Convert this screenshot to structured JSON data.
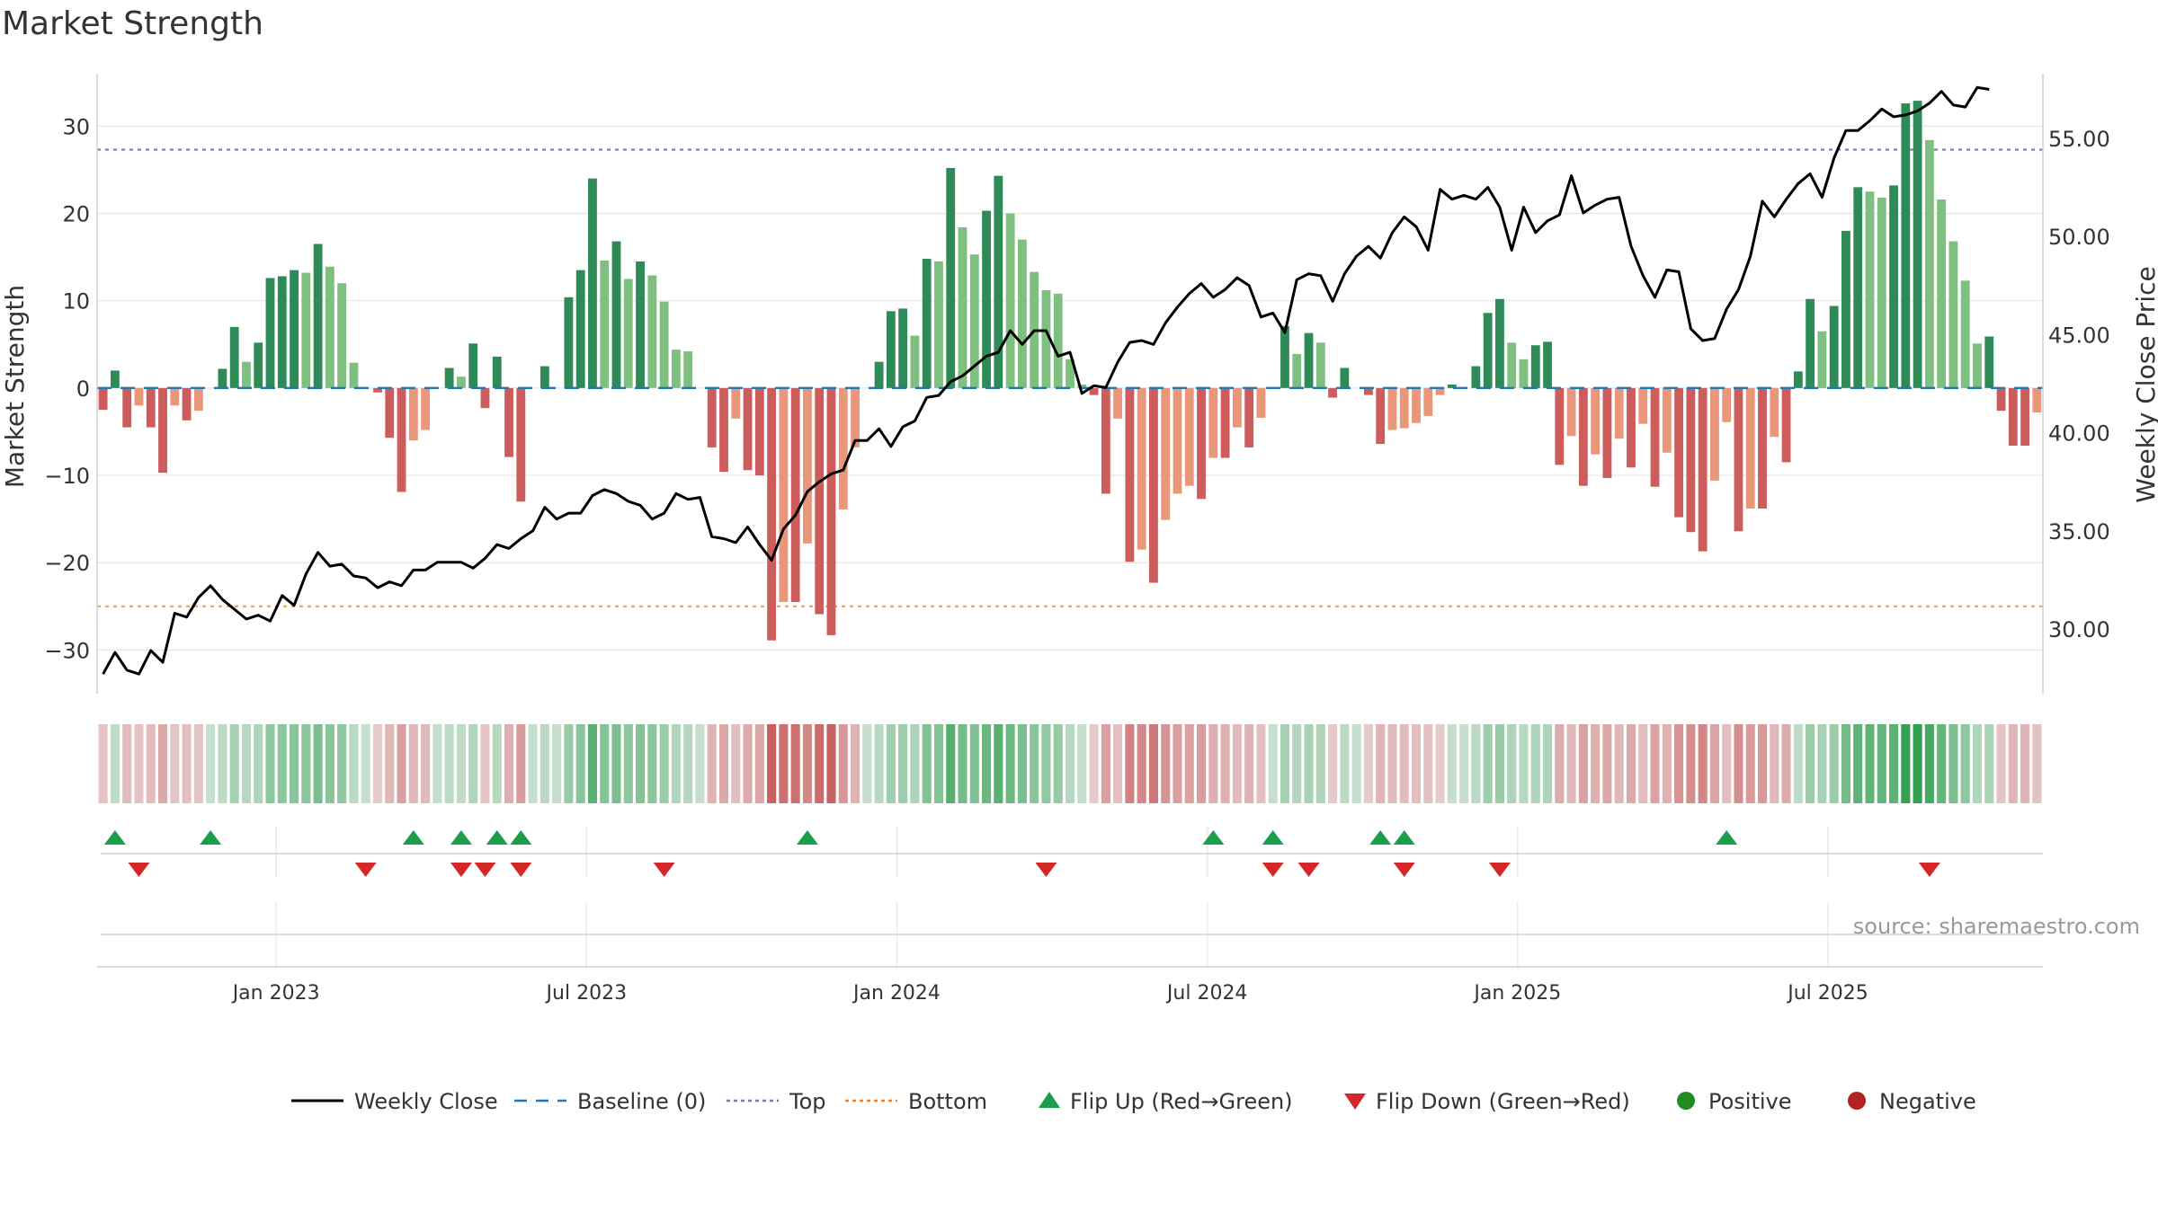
{
  "chart_data": {
    "type": "bar",
    "title": "Market Strength",
    "ylabel": "Market Strength",
    "y2label": "Weekly Close Price",
    "ylim": [
      -35,
      36
    ],
    "y2lim": [
      26.7,
      58.3
    ],
    "yticks": [
      30,
      20,
      10,
      0,
      -10,
      -20,
      -30
    ],
    "ytick_labels": [
      "30",
      "20",
      "10",
      "0",
      "−10",
      "−20",
      "−30"
    ],
    "y2ticks": [
      55,
      50,
      45,
      40,
      35,
      30
    ],
    "y2tick_labels": [
      "55.00",
      "50.00",
      "45.00",
      "40.00",
      "35.00",
      "30.00"
    ],
    "xtick_labels": [
      "Jan 2023",
      "Jul 2023",
      "Jan 2024",
      "Jul 2024",
      "Jan 2025",
      "Jul 2025"
    ],
    "xtick_weeks": [
      14.5,
      40.5,
      66.5,
      92.5,
      118.5,
      144.5
    ],
    "top_line": 27.3,
    "bottom_line": -25,
    "source": "source: sharemaestro.com",
    "legend": [
      {
        "label": "Weekly Close",
        "kind": "line",
        "color": "#000000"
      },
      {
        "label": "Baseline (0)",
        "kind": "dash",
        "color": "#1f77b4"
      },
      {
        "label": "Top",
        "kind": "dot",
        "color": "#9467bd"
      },
      {
        "label": "Bottom",
        "kind": "dot",
        "color": "#ff7f0e"
      },
      {
        "label": "Flip Up (Red→Green)",
        "kind": "tri-up",
        "color": "#1b9e4b"
      },
      {
        "label": "Flip Down (Green→Red)",
        "kind": "tri-down",
        "color": "#d62728"
      },
      {
        "label": "Positive",
        "kind": "circle",
        "color": "#228b22"
      },
      {
        "label": "Negative",
        "kind": "circle",
        "color": "#b22222"
      }
    ],
    "strength": [
      -2.5,
      2,
      -4.5,
      -2,
      -4.5,
      -9.7,
      -2,
      -3.7,
      -2.6,
      0,
      2.2,
      7,
      3,
      5.2,
      12.6,
      12.8,
      13.5,
      13.2,
      16.5,
      13.9,
      12,
      2.9,
      0,
      -0.5,
      -5.7,
      -11.9,
      -6,
      -4.8,
      0,
      2.3,
      1.3,
      5.1,
      -2.3,
      3.6,
      -7.9,
      -13,
      0,
      2.5,
      0,
      10.4,
      13.5,
      24,
      14.6,
      16.8,
      12.5,
      14.5,
      12.9,
      9.9,
      4.4,
      4.2,
      0,
      -6.8,
      -9.6,
      -3.5,
      -9.4,
      -10,
      -28.9,
      -24.5,
      -24.5,
      -17.8,
      -25.9,
      -28.3,
      -13.9,
      -6.8,
      0,
      3,
      8.8,
      9.1,
      6,
      14.8,
      14.5,
      25.2,
      18.4,
      15.3,
      20.3,
      24.3,
      20,
      17,
      13.3,
      11.2,
      10.8,
      3.3,
      0.4,
      -0.8,
      -12.1,
      -3.5,
      -19.9,
      -18.5,
      -22.3,
      -15.1,
      -12.1,
      -11.2,
      -12.7,
      -8,
      -8,
      -4.5,
      -6.8,
      -3.4,
      0,
      7.1,
      3.9,
      6.3,
      5.2,
      -1.1,
      2.3,
      0,
      -0.8,
      -6.4,
      -4.8,
      -4.6,
      -4,
      -3.2,
      -0.8,
      0.4,
      0,
      2.5,
      8.6,
      10.2,
      5.2,
      3.3,
      4.9,
      5.3,
      -8.8,
      -5.5,
      -11.2,
      -7.6,
      -10.3,
      -5.8,
      -9.1,
      -4.1,
      -11.3,
      -7.4,
      -14.8,
      -16.5,
      -18.7,
      -10.6,
      -3.9,
      -16.4,
      -13.8,
      -13.8,
      -5.6,
      -8.5,
      1.9,
      10.2,
      6.5,
      9.4,
      18,
      23,
      22.5,
      21.8,
      23.2,
      32.6,
      32.9,
      28.4,
      21.6,
      16.8,
      12.3,
      5.1,
      5.9,
      -2.6,
      -6.6,
      -6.6,
      -2.8
    ],
    "close": [
      27.7,
      28.8,
      27.9,
      27.7,
      28.9,
      28.3,
      30.8,
      30.6,
      31.6,
      32.2,
      31.5,
      31,
      30.5,
      30.7,
      30.4,
      31.7,
      31.2,
      32.8,
      33.9,
      33.2,
      33.3,
      32.7,
      32.6,
      32.1,
      32.4,
      32.2,
      33,
      33,
      33.4,
      33.4,
      33.4,
      33.1,
      33.6,
      34.3,
      34.1,
      34.6,
      35,
      36.2,
      35.6,
      35.9,
      35.9,
      36.8,
      37.1,
      36.9,
      36.5,
      36.3,
      35.6,
      35.9,
      36.9,
      36.6,
      36.7,
      34.7,
      34.6,
      34.4,
      35.2,
      34.3,
      33.5,
      35.1,
      35.8,
      37,
      37.5,
      37.9,
      38.1,
      39.6,
      39.6,
      40.2,
      39.3,
      40.3,
      40.6,
      41.8,
      41.9,
      42.6,
      42.9,
      43.4,
      43.9,
      44.1,
      45.2,
      44.5,
      45.2,
      45.2,
      43.9,
      44.1,
      42,
      42.4,
      42.3,
      43.6,
      44.6,
      44.7,
      44.5,
      45.6,
      46.4,
      47.1,
      47.6,
      46.9,
      47.3,
      47.9,
      47.5,
      45.9,
      46.1,
      45.1,
      47.8,
      48.1,
      48,
      46.7,
      48.1,
      49,
      49.5,
      48.9,
      50.2,
      51,
      50.5,
      49.3,
      52.4,
      51.9,
      52.1,
      51.9,
      52.5,
      51.5,
      49.3,
      51.5,
      50.2,
      50.8,
      51.1,
      53.1,
      51.2,
      51.6,
      51.9,
      52,
      49.5,
      48,
      46.9,
      48.3,
      48.2,
      45.3,
      44.7,
      44.8,
      46.3,
      47.3,
      49,
      51.8,
      51,
      51.9,
      52.7,
      53.2,
      52,
      54,
      55.4,
      55.4,
      55.9,
      56.5,
      56.1,
      56.2,
      56.4,
      56.8,
      57.4,
      56.7,
      56.6,
      57.6,
      57.5
    ],
    "flips_up": [
      1,
      9,
      26,
      30,
      33,
      35,
      59,
      93,
      98,
      107,
      109,
      136
    ],
    "flips_down": [
      3,
      22,
      30,
      32,
      35,
      47,
      79,
      98,
      101,
      109,
      117,
      153
    ]
  }
}
